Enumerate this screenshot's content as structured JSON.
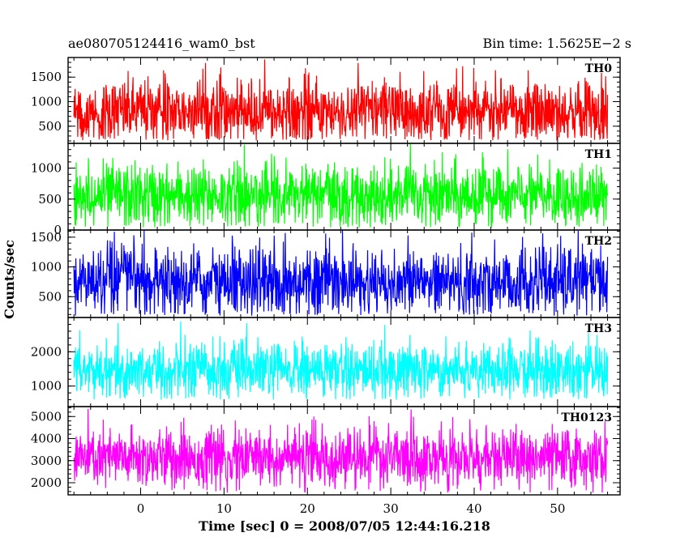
{
  "header": {
    "left": "ae080705124416_wam0_bst",
    "right": "Bin time: 1.5625E−2 s"
  },
  "chart_data": {
    "type": "line",
    "title": "ae080705124416_wam0_bst",
    "subtitle": "Bin time: 1.5625E−2 s",
    "xlabel": "Time [sec] 0 = 2008/07/05 12:44:16.218",
    "ylabel": "Counts/sec",
    "xlim": [
      -8.7,
      57.5
    ],
    "x_range_data": [
      -8.0,
      56.0
    ],
    "bin_time": 0.015625,
    "x_ticks": [
      0,
      10,
      20,
      30,
      40,
      50
    ],
    "x_tick_labels": [
      "0",
      "10",
      "20",
      "30",
      "40",
      "50"
    ],
    "grid": false,
    "legend": "none",
    "panels": [
      {
        "name": "TH0",
        "color": "#ff0000",
        "ylim": [
          150,
          1900
        ],
        "y_ticks": [
          500,
          1000,
          1500
        ],
        "y_tick_labels": [
          "500",
          "1000",
          "1500"
        ],
        "mean": 800,
        "sigma": 330,
        "min": 210,
        "max": 1900
      },
      {
        "name": "TH1",
        "color": "#00ff00",
        "ylim": [
          0,
          1400
        ],
        "y_ticks": [
          0,
          500,
          1000
        ],
        "y_tick_labels": [
          "0",
          "500",
          "1000"
        ],
        "mean": 550,
        "sigma": 260,
        "min": 40,
        "max": 1400
      },
      {
        "name": "TH2",
        "color": "#0000ff",
        "ylim": [
          150,
          1620
        ],
        "y_ticks": [
          500,
          1000,
          1500
        ],
        "y_tick_labels": [
          "500",
          "1000",
          "1500"
        ],
        "mean": 750,
        "sigma": 310,
        "min": 180,
        "max": 1620
      },
      {
        "name": "TH3",
        "color": "#00ffff",
        "ylim": [
          400,
          3000
        ],
        "y_ticks": [
          1000,
          2000
        ],
        "y_tick_labels": [
          "1000",
          "2000"
        ],
        "mean": 1450,
        "sigma": 420,
        "min": 600,
        "max": 2950
      },
      {
        "name": "TH0123",
        "color": "#ff00ff",
        "ylim": [
          1450,
          5450
        ],
        "y_ticks": [
          2000,
          3000,
          4000,
          5000
        ],
        "y_tick_labels": [
          "2000",
          "3000",
          "4000",
          "5000"
        ],
        "mean": 3100,
        "sigma": 680,
        "min": 1550,
        "max": 5400
      }
    ]
  }
}
